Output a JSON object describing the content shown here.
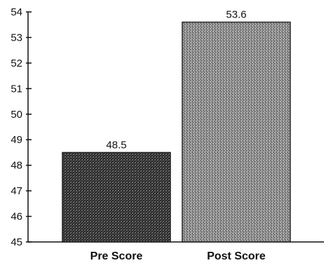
{
  "chart_data": {
    "type": "bar",
    "title": "",
    "xlabel": "",
    "ylabel": "",
    "categories": [
      "Pre Score",
      "Post Score"
    ],
    "values": [
      48.5,
      53.6
    ],
    "data_labels": [
      "48.5",
      "53.6"
    ],
    "ylim": [
      45,
      54
    ],
    "yticks": [
      "45",
      "46",
      "47",
      "48",
      "49",
      "50",
      "51",
      "52",
      "53",
      "54"
    ],
    "grid": false,
    "bar_fills": [
      "dark-stipple",
      "light-stipple"
    ]
  }
}
